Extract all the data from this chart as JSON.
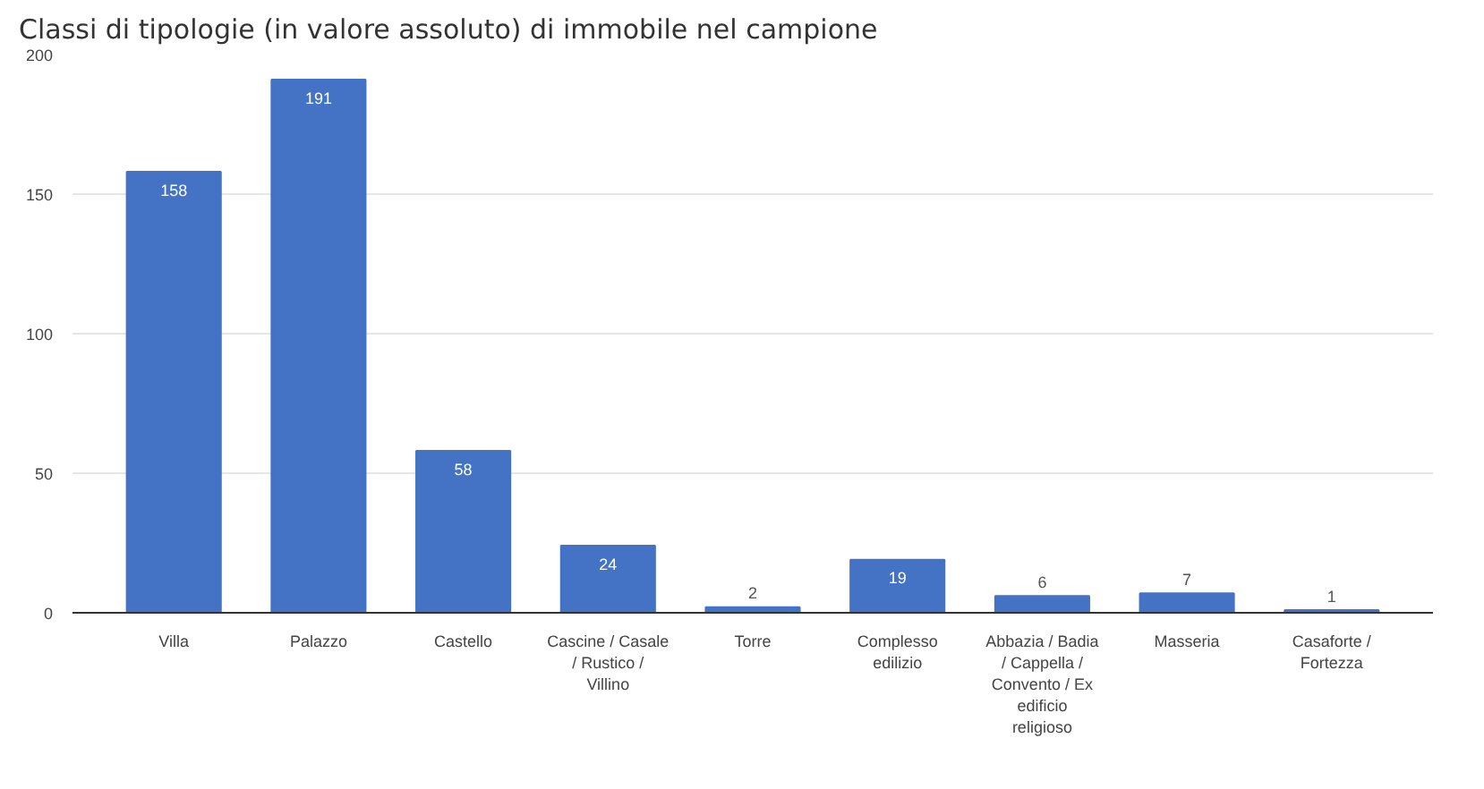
{
  "chart_data": {
    "type": "bar",
    "title": "Classi di tipologie (in valore assoluto) di immobile nel campione",
    "categories": [
      "Villa",
      "Palazzo",
      "Castello",
      "Cascine / Casale / Rustico / Villino",
      "Torre",
      "Complesso edilizio",
      "Abbazia / Badia / Cappella / Convento / Ex edificio religioso",
      "Masseria",
      "Casaforte / Fortezza"
    ],
    "values": [
      158,
      191,
      58,
      24,
      2,
      19,
      6,
      7,
      1
    ],
    "color": "#4472c4",
    "ylim": [
      0,
      200
    ],
    "yticks": [
      0,
      50,
      100,
      150,
      200
    ],
    "grid": "y",
    "data_labels": true
  }
}
